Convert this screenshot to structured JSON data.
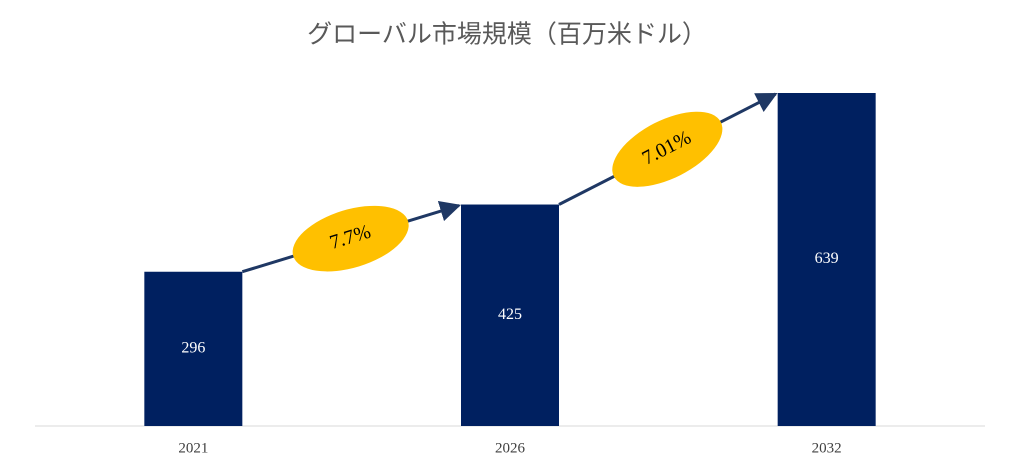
{
  "chart_data": {
    "type": "bar",
    "title": "グローバル市場規模（百万米ドル）",
    "categories": [
      "2021",
      "2026",
      "2032"
    ],
    "values": [
      296,
      425,
      639
    ],
    "color": "#002060",
    "growth_labels": [
      "7.7%",
      "7.01%"
    ],
    "growth_color": "#FFC000",
    "arrow_color": "#1F3864"
  }
}
